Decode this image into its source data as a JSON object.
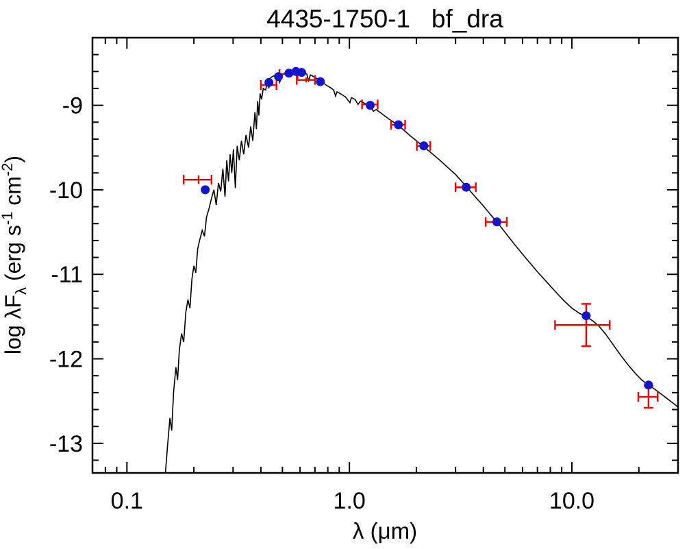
{
  "chart_data": {
    "type": "line",
    "title": "4435-1750-1   bf_dra",
    "xlabel": "λ (μm)",
    "ylabel": "log λFλ (erg s⁻¹ cm⁻²)",
    "ylabel_parts": {
      "p1": "log λF",
      "sub": "λ",
      "p2": " (erg s",
      "sup1": "-1",
      "p3": " cm",
      "sup2": "-2",
      "p4": ")"
    },
    "x_scale": "log",
    "y_scale": "linear",
    "xlim": [
      0.07,
      30
    ],
    "ylim": [
      -13.35,
      -8.2
    ],
    "grid": false,
    "legend": false,
    "x_major_ticks": [
      {
        "value": 0.1,
        "label": "0.1"
      },
      {
        "value": 1.0,
        "label": "1.0"
      },
      {
        "value": 10.0,
        "label": "10.0"
      }
    ],
    "y_major_ticks": [
      {
        "value": -9,
        "label": "-9"
      },
      {
        "value": -10,
        "label": "-10"
      },
      {
        "value": -11,
        "label": "-11"
      },
      {
        "value": -12,
        "label": "-12"
      },
      {
        "value": -13,
        "label": "-13"
      }
    ],
    "colors": {
      "model_curve": "#000000",
      "model_points": "#1414cc",
      "observed": "#ee0000",
      "frame": "#000000"
    },
    "series": [
      {
        "name": "model-spectrum",
        "type": "line",
        "points": [
          [
            0.148,
            -13.45
          ],
          [
            0.152,
            -13.05
          ],
          [
            0.156,
            -12.7
          ],
          [
            0.159,
            -12.85
          ],
          [
            0.162,
            -12.4
          ],
          [
            0.166,
            -12.1
          ],
          [
            0.169,
            -12.25
          ],
          [
            0.172,
            -11.9
          ],
          [
            0.176,
            -11.7
          ],
          [
            0.18,
            -11.8
          ],
          [
            0.184,
            -11.45
          ],
          [
            0.188,
            -11.3
          ],
          [
            0.192,
            -11.4
          ],
          [
            0.196,
            -11.05
          ],
          [
            0.2,
            -10.9
          ],
          [
            0.204,
            -10.98
          ],
          [
            0.208,
            -10.7
          ],
          [
            0.213,
            -10.58
          ],
          [
            0.218,
            -10.48
          ],
          [
            0.223,
            -10.55
          ],
          [
            0.228,
            -10.32
          ],
          [
            0.234,
            -10.22
          ],
          [
            0.24,
            -10.1
          ],
          [
            0.246,
            -10.0
          ],
          [
            0.252,
            -10.18
          ],
          [
            0.258,
            -9.92
          ],
          [
            0.264,
            -10.02
          ],
          [
            0.27,
            -9.75
          ],
          [
            0.276,
            -10.08
          ],
          [
            0.281,
            -9.65
          ],
          [
            0.286,
            -9.9
          ],
          [
            0.291,
            -9.58
          ],
          [
            0.296,
            -9.8
          ],
          [
            0.301,
            -9.52
          ],
          [
            0.307,
            -9.98
          ],
          [
            0.313,
            -9.48
          ],
          [
            0.32,
            -9.65
          ],
          [
            0.327,
            -9.42
          ],
          [
            0.335,
            -9.58
          ],
          [
            0.343,
            -9.35
          ],
          [
            0.352,
            -9.5
          ],
          [
            0.36,
            -9.25
          ],
          [
            0.368,
            -9.42
          ],
          [
            0.376,
            -9.08
          ],
          [
            0.382,
            -9.28
          ],
          [
            0.387,
            -8.95
          ],
          [
            0.392,
            -9.12
          ],
          [
            0.397,
            -8.86
          ],
          [
            0.403,
            -8.93
          ],
          [
            0.41,
            -8.8
          ],
          [
            0.42,
            -8.82
          ],
          [
            0.428,
            -8.72
          ],
          [
            0.434,
            -8.8
          ],
          [
            0.441,
            -8.68
          ],
          [
            0.45,
            -8.66
          ],
          [
            0.46,
            -8.65
          ],
          [
            0.47,
            -8.64
          ],
          [
            0.486,
            -8.73
          ],
          [
            0.496,
            -8.64
          ],
          [
            0.51,
            -8.62
          ],
          [
            0.53,
            -8.61
          ],
          [
            0.555,
            -8.6
          ],
          [
            0.58,
            -8.6
          ],
          [
            0.6,
            -8.61
          ],
          [
            0.625,
            -8.62
          ],
          [
            0.643,
            -8.63
          ],
          [
            0.656,
            -8.71
          ],
          [
            0.668,
            -8.64
          ],
          [
            0.69,
            -8.66
          ],
          [
            0.72,
            -8.69
          ],
          [
            0.75,
            -8.72
          ],
          [
            0.785,
            -8.76
          ],
          [
            0.82,
            -8.79
          ],
          [
            0.85,
            -8.82
          ],
          [
            0.866,
            -8.89
          ],
          [
            0.88,
            -8.84
          ],
          [
            0.92,
            -8.87
          ],
          [
            0.96,
            -8.9
          ],
          [
            1.005,
            -8.97
          ],
          [
            1.02,
            -8.91
          ],
          [
            1.06,
            -8.93
          ],
          [
            1.094,
            -8.99
          ],
          [
            1.12,
            -8.95
          ],
          [
            1.18,
            -8.98
          ],
          [
            1.24,
            -9.01
          ],
          [
            1.282,
            -9.07
          ],
          [
            1.32,
            -9.05
          ],
          [
            1.4,
            -9.1
          ],
          [
            1.5,
            -9.16
          ],
          [
            1.6,
            -9.21
          ],
          [
            1.66,
            -9.24
          ],
          [
            1.75,
            -9.29
          ],
          [
            1.875,
            -9.36
          ],
          [
            2.0,
            -9.42
          ],
          [
            2.16,
            -9.49
          ],
          [
            2.3,
            -9.55
          ],
          [
            2.5,
            -9.63
          ],
          [
            2.7,
            -9.71
          ],
          [
            3.0,
            -9.82
          ],
          [
            3.35,
            -9.96
          ],
          [
            3.7,
            -10.09
          ],
          [
            4.0,
            -10.19
          ],
          [
            4.3,
            -10.29
          ],
          [
            4.6,
            -10.38
          ],
          [
            5.0,
            -10.5
          ],
          [
            5.5,
            -10.64
          ],
          [
            6.0,
            -10.76
          ],
          [
            6.5,
            -10.87
          ],
          [
            7.0,
            -10.97
          ],
          [
            7.7,
            -11.09
          ],
          [
            8.4,
            -11.2
          ],
          [
            9.2,
            -11.31
          ],
          [
            10.0,
            -11.4
          ],
          [
            10.8,
            -11.46
          ],
          [
            11.6,
            -11.5
          ],
          [
            12.4,
            -11.55
          ],
          [
            13.2,
            -11.61
          ],
          [
            14.2,
            -11.71
          ],
          [
            15.4,
            -11.84
          ],
          [
            16.6,
            -11.96
          ],
          [
            18.0,
            -12.08
          ],
          [
            19.4,
            -12.18
          ],
          [
            20.6,
            -12.25
          ],
          [
            21.6,
            -12.29
          ],
          [
            22.4,
            -12.32
          ],
          [
            23.6,
            -12.36
          ],
          [
            25.0,
            -12.41
          ],
          [
            26.5,
            -12.46
          ],
          [
            28.0,
            -12.51
          ],
          [
            30.0,
            -12.57
          ]
        ]
      },
      {
        "name": "model-photometry",
        "type": "scatter",
        "marker": "circle",
        "points": [
          [
            0.225,
            -10.0
          ],
          [
            0.435,
            -8.73
          ],
          [
            0.48,
            -8.66
          ],
          [
            0.535,
            -8.62
          ],
          [
            0.575,
            -8.6
          ],
          [
            0.61,
            -8.61
          ],
          [
            0.74,
            -8.72
          ],
          [
            1.24,
            -9.0
          ],
          [
            1.66,
            -9.23
          ],
          [
            2.16,
            -9.48
          ],
          [
            3.35,
            -9.97
          ],
          [
            4.6,
            -10.38
          ],
          [
            11.6,
            -11.49
          ],
          [
            22.1,
            -12.31
          ]
        ]
      },
      {
        "name": "observed-photometry",
        "type": "scatter-errorbar",
        "marker": "plus",
        "points": [
          {
            "x": 0.21,
            "y": -9.88,
            "xerr": 0.03,
            "yerr": 0.05
          },
          {
            "x": 0.435,
            "y": -8.76,
            "xerr": 0.035,
            "yerr": 0.03
          },
          {
            "x": 0.535,
            "y": -8.63,
            "xerr": 0.05,
            "yerr": 0.03
          },
          {
            "x": 0.64,
            "y": -8.7,
            "xerr": 0.06,
            "yerr": 0.03
          },
          {
            "x": 1.24,
            "y": -8.99,
            "xerr": 0.1,
            "yerr": 0.03
          },
          {
            "x": 1.66,
            "y": -9.23,
            "xerr": 0.12,
            "yerr": 0.03
          },
          {
            "x": 2.16,
            "y": -9.48,
            "xerr": 0.15,
            "yerr": 0.03
          },
          {
            "x": 3.35,
            "y": -9.97,
            "xerr": 0.35,
            "yerr": 0.03
          },
          {
            "x": 4.6,
            "y": -10.38,
            "xerr": 0.5,
            "yerr": 0.03
          },
          {
            "x": 11.6,
            "y": -11.6,
            "xerr": 3.2,
            "yerr": 0.25
          },
          {
            "x": 22.1,
            "y": -12.45,
            "xerr": 2.2,
            "yerr": 0.13
          }
        ]
      }
    ]
  }
}
